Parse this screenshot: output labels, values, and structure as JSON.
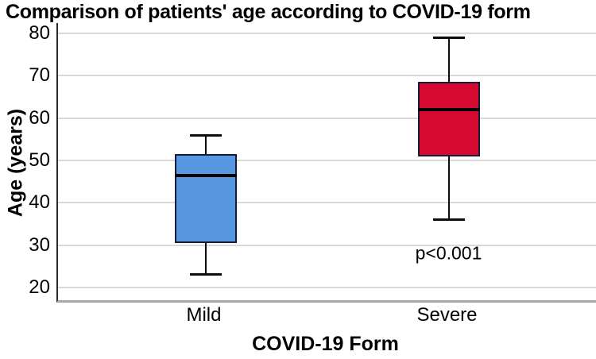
{
  "chart_data": {
    "type": "boxplot",
    "title": "Comparison of patients' age according to COVID-19 form",
    "xlabel": "COVID-19 Form",
    "ylabel": "Age (years)",
    "ylim": [
      20,
      80
    ],
    "yticks": [
      20,
      30,
      40,
      50,
      60,
      70,
      80
    ],
    "grid": true,
    "legend": "none",
    "categories": [
      "Mild",
      "Severe"
    ],
    "series": [
      {
        "name": "Mild",
        "min": 23,
        "q1": 30.5,
        "median": 46.5,
        "q3": 51.5,
        "max": 56,
        "fill_color": "#5898E0",
        "border_color": "#131c38"
      },
      {
        "name": "Severe",
        "min": 36,
        "q1": 51,
        "median": 62,
        "q3": 68.5,
        "max": 79,
        "fill_color": "#D60A31",
        "border_color": "#131c38"
      }
    ],
    "annotation": {
      "text": "p<0.001",
      "category": "Severe",
      "y": 28
    },
    "colors": {
      "gridline": "#d9d9d9",
      "y_axis_line": "#2b2b2b",
      "x_axis_line": "#a8a8a8",
      "median": "#000000",
      "whisker": "#0c0c0c",
      "background": "#ffffff",
      "text": "#000000"
    }
  }
}
